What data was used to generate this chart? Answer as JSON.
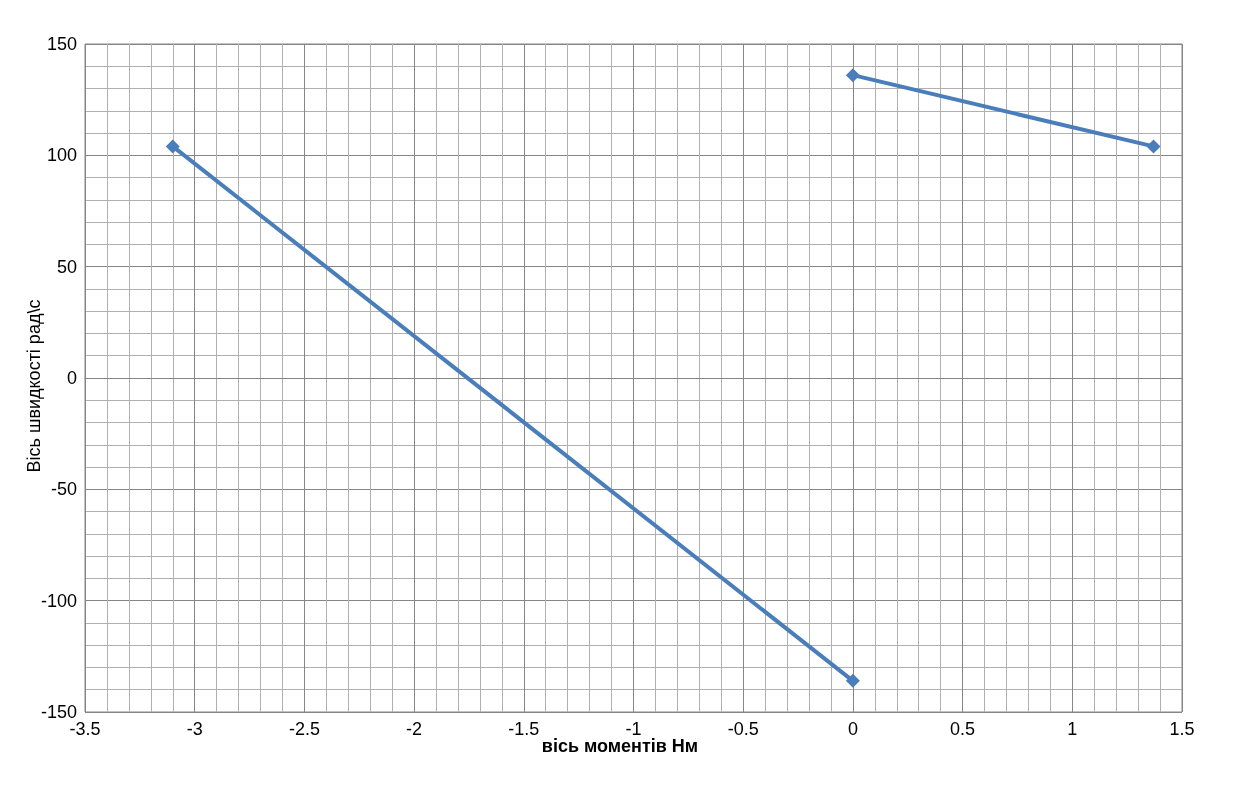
{
  "chart_data": {
    "type": "line",
    "xlabel": "вісь моментів Нм",
    "ylabel": "Вісь швидкості рад\\с",
    "series": [
      {
        "color": "#4a7ebb",
        "x": [
          -3.1,
          0
        ],
        "values": [
          104,
          -136
        ]
      },
      {
        "color": "#4a7ebb",
        "x": [
          0,
          1.37
        ],
        "values": [
          136,
          104
        ]
      }
    ],
    "xlim": [
      -3.5,
      1.5
    ],
    "xticks": [
      -3.5,
      -3,
      -2.5,
      -2,
      -1.5,
      -1,
      -0.5,
      0,
      0.5,
      1,
      1.5
    ],
    "ylim": [
      -150,
      150
    ],
    "yticks": [
      -150,
      -100,
      -50,
      0,
      50,
      100,
      150
    ],
    "grid": true,
    "marker": "diamond",
    "line_style": "solid"
  }
}
